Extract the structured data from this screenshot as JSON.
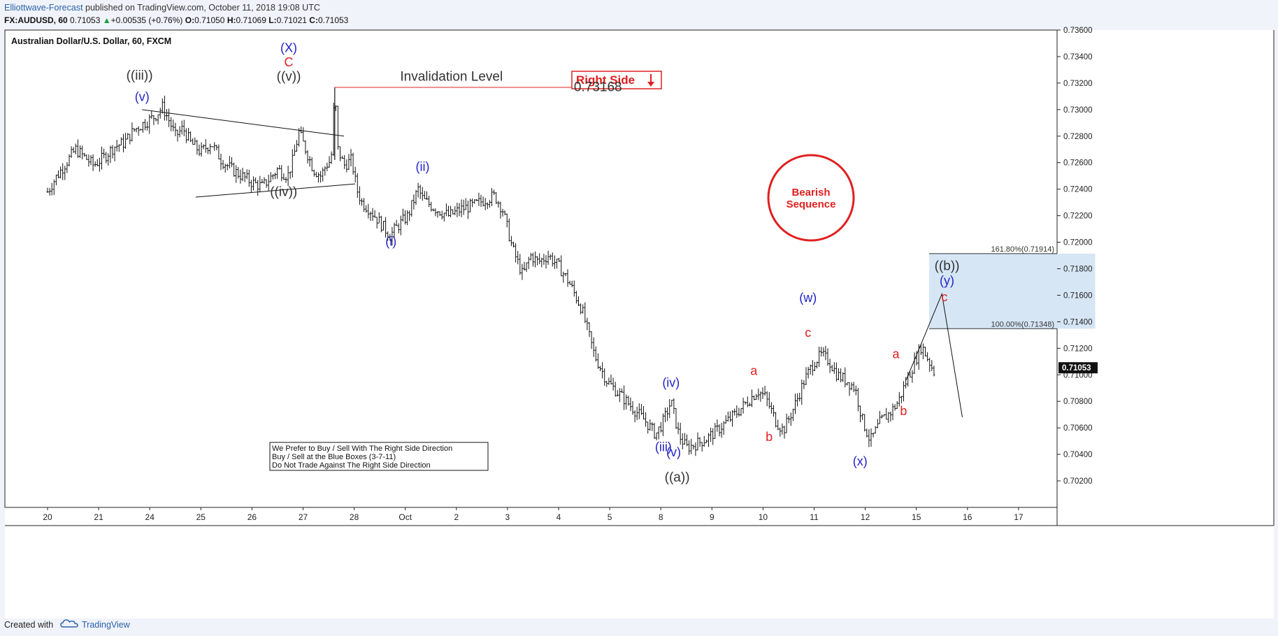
{
  "header": {
    "publisher": "Elliottwave-Forecast",
    "published_text": " published on TradingView.com, October 11, 2018 19:08 UTC",
    "symbol": "FX:AUDUSD, 60",
    "last": "0.71053",
    "change": "+0.00535 (+0.76%)",
    "o_label": "O:",
    "o": "0.71050",
    "h_label": "H:",
    "h": "0.71069",
    "l_label": "L:",
    "l": "0.71021",
    "c_label": "C:",
    "c": "0.71053"
  },
  "footer": {
    "created_with": "Created with",
    "brand": "TradingView"
  },
  "chart_data": {
    "type": "candlestick",
    "title": "Australian Dollar/U.S. Dollar, 60, FXCM",
    "ylim": [
      0.7,
      0.736
    ],
    "y_ticks": [
      "0.73600",
      "0.73400",
      "0.73200",
      "0.73000",
      "0.72800",
      "0.72600",
      "0.72400",
      "0.72200",
      "0.72000",
      "0.71800",
      "0.71600",
      "0.71400",
      "0.71200",
      "0.71000",
      "0.70800",
      "0.70600",
      "0.70400",
      "0.70200"
    ],
    "x_ticks": [
      "20",
      "21",
      "24",
      "25",
      "26",
      "27",
      "28",
      "Oct",
      "2",
      "3",
      "4",
      "5",
      "8",
      "9",
      "10",
      "11",
      "12",
      "15",
      "16",
      "17"
    ],
    "current_price": "0.71053",
    "price_path": [
      [
        0,
        0.7238
      ],
      [
        0.15,
        0.7248
      ],
      [
        0.4,
        0.7262
      ],
      [
        0.55,
        0.727
      ],
      [
        0.7,
        0.7265
      ],
      [
        0.9,
        0.7258
      ],
      [
        1.1,
        0.7264
      ],
      [
        1.3,
        0.7272
      ],
      [
        1.5,
        0.7275
      ],
      [
        1.7,
        0.7285
      ],
      [
        1.9,
        0.729
      ],
      [
        2.1,
        0.7295
      ],
      [
        2.25,
        0.7302
      ],
      [
        2.4,
        0.729
      ],
      [
        2.5,
        0.728
      ],
      [
        2.65,
        0.7286
      ],
      [
        2.8,
        0.7275
      ],
      [
        3.0,
        0.7268
      ],
      [
        3.2,
        0.7275
      ],
      [
        3.4,
        0.7262
      ],
      [
        3.6,
        0.7255
      ],
      [
        3.8,
        0.725
      ],
      [
        4.0,
        0.7245
      ],
      [
        4.2,
        0.7242
      ],
      [
        4.35,
        0.7248
      ],
      [
        4.5,
        0.7255
      ],
      [
        4.7,
        0.725
      ],
      [
        4.8,
        0.7262
      ],
      [
        4.92,
        0.7283
      ],
      [
        5.05,
        0.727
      ],
      [
        5.2,
        0.7255
      ],
      [
        5.35,
        0.725
      ],
      [
        5.45,
        0.7258
      ],
      [
        5.55,
        0.7262
      ],
      [
        5.62,
        0.7316
      ],
      [
        5.68,
        0.727
      ],
      [
        5.8,
        0.7258
      ],
      [
        5.95,
        0.7262
      ],
      [
        6.05,
        0.724
      ],
      [
        6.15,
        0.723
      ],
      [
        6.3,
        0.7225
      ],
      [
        6.5,
        0.7215
      ],
      [
        6.7,
        0.7205
      ],
      [
        6.85,
        0.7212
      ],
      [
        7.05,
        0.722
      ],
      [
        7.25,
        0.724
      ],
      [
        7.35,
        0.7232
      ],
      [
        7.6,
        0.7225
      ],
      [
        7.85,
        0.722
      ],
      [
        8.1,
        0.7225
      ],
      [
        8.35,
        0.7228
      ],
      [
        8.55,
        0.7232
      ],
      [
        8.75,
        0.7235
      ],
      [
        8.9,
        0.7225
      ],
      [
        9.1,
        0.7195
      ],
      [
        9.3,
        0.7175
      ],
      [
        9.45,
        0.719
      ],
      [
        9.6,
        0.7185
      ],
      [
        9.8,
        0.719
      ],
      [
        10.0,
        0.7182
      ],
      [
        10.2,
        0.717
      ],
      [
        10.45,
        0.715
      ],
      [
        10.7,
        0.7115
      ],
      [
        10.95,
        0.7095
      ],
      [
        11.2,
        0.7085
      ],
      [
        11.45,
        0.7075
      ],
      [
        11.7,
        0.7065
      ],
      [
        11.9,
        0.7055
      ],
      [
        12.05,
        0.7065
      ],
      [
        12.2,
        0.708
      ],
      [
        12.35,
        0.7055
      ],
      [
        12.5,
        0.7045
      ],
      [
        12.7,
        0.7048
      ],
      [
        12.9,
        0.7052
      ],
      [
        13.1,
        0.7058
      ],
      [
        13.3,
        0.7065
      ],
      [
        13.5,
        0.7072
      ],
      [
        13.7,
        0.708
      ],
      [
        13.9,
        0.7088
      ],
      [
        14.05,
        0.7083
      ],
      [
        14.25,
        0.7065
      ],
      [
        14.4,
        0.7058
      ],
      [
        14.6,
        0.7075
      ],
      [
        14.8,
        0.7095
      ],
      [
        15.0,
        0.711
      ],
      [
        15.15,
        0.7115
      ],
      [
        15.3,
        0.711
      ],
      [
        15.45,
        0.71
      ],
      [
        15.65,
        0.7095
      ],
      [
        15.8,
        0.709
      ],
      [
        15.95,
        0.7065
      ],
      [
        16.1,
        0.705
      ],
      [
        16.3,
        0.7065
      ],
      [
        16.5,
        0.7072
      ],
      [
        16.65,
        0.708
      ],
      [
        16.8,
        0.7095
      ],
      [
        16.95,
        0.7108
      ],
      [
        17.1,
        0.7122
      ],
      [
        17.25,
        0.711
      ],
      [
        17.35,
        0.7102
      ]
    ],
    "labels": [
      {
        "text": "((iii))",
        "x": 1.8,
        "y": 0.73225,
        "color": "#333333"
      },
      {
        "text": "(v)",
        "x": 1.85,
        "y": 0.73065,
        "color": "#2323c8"
      },
      {
        "text": "(X)",
        "x": 4.72,
        "y": 0.73435,
        "color": "#2323c8"
      },
      {
        "text": "C",
        "x": 4.72,
        "y": 0.73325,
        "color": "#e02020"
      },
      {
        "text": "((v))",
        "x": 4.72,
        "y": 0.73217,
        "color": "#333333"
      },
      {
        "text": "((iv))",
        "x": 4.62,
        "y": 0.72348,
        "color": "#333333"
      },
      {
        "text": "Invalidation Level",
        "x": 6.9,
        "y": 0.73217,
        "color": "#333333"
      },
      {
        "text": "0.73168",
        "x": 10.3,
        "y": 0.7314,
        "color": "#333333"
      },
      {
        "text": "(i)",
        "x": 6.72,
        "y": 0.71975,
        "color": "#2323c8"
      },
      {
        "text": "(ii)",
        "x": 7.34,
        "y": 0.72538,
        "color": "#2323c8"
      },
      {
        "text": "(iv)",
        "x": 12.2,
        "y": 0.7091,
        "color": "#2323c8"
      },
      {
        "text": "(iii)",
        "x": 12.05,
        "y": 0.70425,
        "color": "#2323c8"
      },
      {
        "text": "(v)",
        "x": 12.25,
        "y": 0.70385,
        "color": "#2323c8"
      },
      {
        "text": "((a))",
        "x": 12.32,
        "y": 0.70195,
        "color": "#333333"
      },
      {
        "text": "a",
        "x": 13.82,
        "y": 0.71,
        "color": "#e02020"
      },
      {
        "text": "b",
        "x": 14.12,
        "y": 0.705,
        "color": "#e02020"
      },
      {
        "text": "(w)",
        "x": 14.88,
        "y": 0.7155,
        "color": "#2323c8"
      },
      {
        "text": "c",
        "x": 14.88,
        "y": 0.71285,
        "color": "#e02020"
      },
      {
        "text": "(x)",
        "x": 15.9,
        "y": 0.70315,
        "color": "#2323c8"
      },
      {
        "text": "a",
        "x": 16.6,
        "y": 0.71125,
        "color": "#e02020"
      },
      {
        "text": "b",
        "x": 16.75,
        "y": 0.70695,
        "color": "#e02020"
      },
      {
        "text": "((b))",
        "x": 17.6,
        "y": 0.7179,
        "color": "#333333"
      },
      {
        "text": "(y)",
        "x": 17.6,
        "y": 0.7168,
        "color": "#2323c8"
      },
      {
        "text": "c",
        "x": 17.55,
        "y": 0.71555,
        "color": "#e02020"
      }
    ],
    "fib_box": {
      "top": 0.71914,
      "bottom": 0.71348,
      "x0": 17.25,
      "x1": 20.5,
      "top_label": "161.80%(0.71914)",
      "bottom_label": "100.00%(0.71348)"
    },
    "invalidation_price": 0.73168,
    "right_side_label": "Right Side",
    "bearish_label_1": "Bearish",
    "bearish_label_2": "Sequence",
    "note_lines": [
      "We Prefer to Buy / Sell With The Right Side Direction",
      "Buy / Sell at the Blue Boxes (3-7-11)",
      "Do Not Trade Against The Right Side Direction"
    ],
    "projection": [
      [
        16.8,
        0.7096
      ],
      [
        17.5,
        0.7161
      ],
      [
        17.9,
        0.7068
      ]
    ]
  }
}
